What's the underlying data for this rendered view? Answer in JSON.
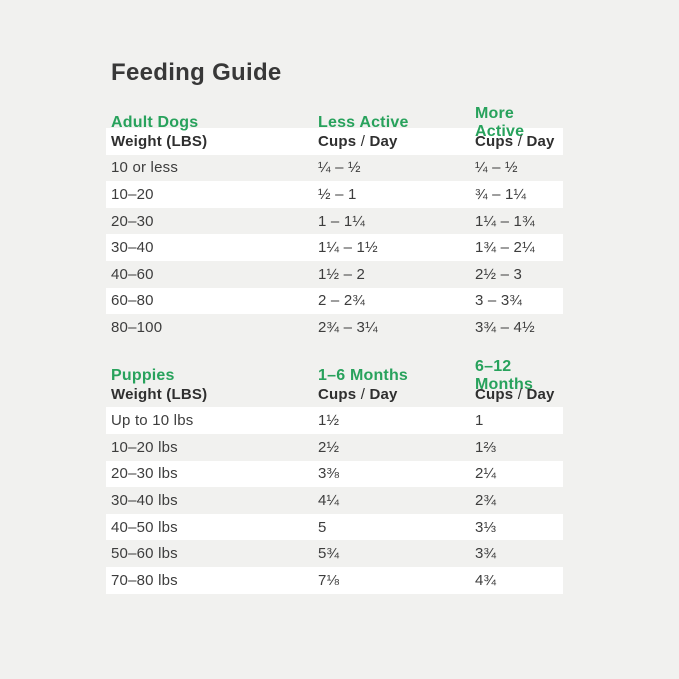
{
  "title": "Feeding Guide",
  "colors": {
    "page_background": "#f1f1ef",
    "stripe_white": "#ffffff",
    "accent_green": "#28a25c",
    "text_dark": "#3d3d3d"
  },
  "labels": {
    "weight_header": "Weight (LBS)",
    "cups": "Cups",
    "slash": "/",
    "day": "Day"
  },
  "adult_dogs": {
    "section_label": "Adult Dogs",
    "col2_label": "Less Active",
    "col3_label": "More Active",
    "rows": [
      {
        "weight": "10 or less",
        "less_active": "¼ – ½",
        "more_active": "¼ – ½"
      },
      {
        "weight": "10–20",
        "less_active": "½ – 1",
        "more_active": "¾ – 1¼"
      },
      {
        "weight": "20–30",
        "less_active": "1 – 1¼",
        "more_active": "1¼ – 1¾"
      },
      {
        "weight": "30–40",
        "less_active": "1¼ – 1½",
        "more_active": "1¾ – 2¼"
      },
      {
        "weight": "40–60",
        "less_active": "1½ – 2",
        "more_active": "2½ – 3"
      },
      {
        "weight": "60–80",
        "less_active": "2 – 2¾",
        "more_active": "3 – 3¾"
      },
      {
        "weight": "80–100",
        "less_active": "2¾ – 3¼",
        "more_active": "3¾ – 4½"
      }
    ]
  },
  "puppies": {
    "section_label": "Puppies",
    "col2_label": "1–6 Months",
    "col3_label": "6–12 Months",
    "rows": [
      {
        "weight": "Up to 10 lbs",
        "months_1_6": "1½",
        "months_6_12": "1"
      },
      {
        "weight": "10–20 lbs",
        "months_1_6": "2½",
        "months_6_12": "1⅔"
      },
      {
        "weight": "20–30 lbs",
        "months_1_6": "3⅜",
        "months_6_12": "2¼"
      },
      {
        "weight": "30–40 lbs",
        "months_1_6": "4¼",
        "months_6_12": "2¾"
      },
      {
        "weight": "40–50 lbs",
        "months_1_6": "5",
        "months_6_12": "3⅓"
      },
      {
        "weight": "50–60 lbs",
        "months_1_6": "5¾",
        "months_6_12": "3¾"
      },
      {
        "weight": "70–80 lbs",
        "months_1_6": "7⅛",
        "months_6_12": "4¾"
      }
    ]
  }
}
